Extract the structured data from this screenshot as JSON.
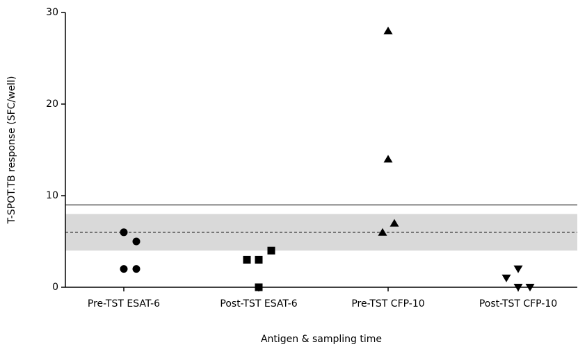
{
  "chart_data": {
    "type": "scatter",
    "x_label": "Antigen & sampling time",
    "y_label": "T-SPOT.TB response (SFC/well)",
    "categories": [
      "Pre-TST ESAT-6",
      "Post-TST ESAT-6",
      "Pre-TST CFP-10",
      "Post-TST CFP-10"
    ],
    "values": [
      [
        6,
        5,
        2,
        2
      ],
      [
        3,
        3,
        4,
        0
      ],
      [
        28,
        14,
        6,
        7
      ],
      [
        1,
        2,
        0,
        0
      ]
    ],
    "markers": [
      "circle",
      "square",
      "triangle",
      "triangle-down"
    ],
    "color": "#000000",
    "ylim": [
      0,
      30
    ],
    "yticks": [
      0,
      10,
      20,
      30
    ],
    "solid_line": 9,
    "dashed_line": 6,
    "band": [
      4,
      8
    ],
    "band_color": "#d9d9d9"
  }
}
